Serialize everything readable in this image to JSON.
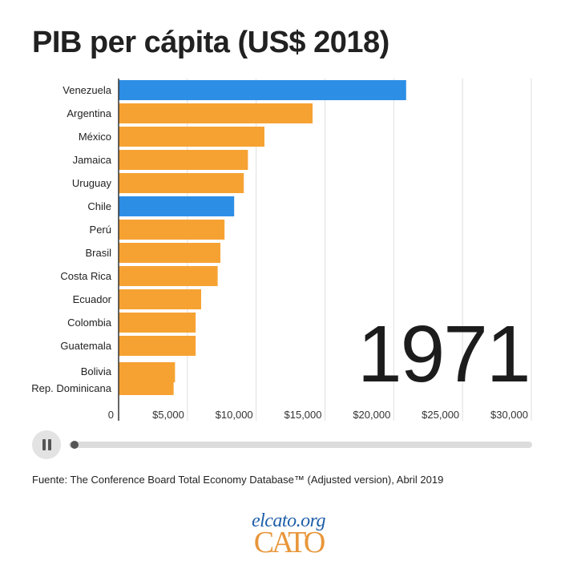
{
  "chart_data": {
    "type": "bar",
    "orientation": "horizontal",
    "title": "PIB per cápita (US$ 2018)",
    "categories": [
      "Venezuela",
      "Argentina",
      "México",
      "Jamaica",
      "Uruguay",
      "Chile",
      "Perú",
      "Brasil",
      "Costa Rica",
      "Ecuador",
      "Colombia",
      "Guatemala",
      "Bolivia",
      "Rep. Dominicana"
    ],
    "values": [
      20900,
      14100,
      10600,
      9400,
      9100,
      8400,
      7700,
      7400,
      7200,
      6000,
      5600,
      5600,
      4100,
      4000
    ],
    "colors": [
      "#2d8ee5",
      "#f6a233",
      "#f6a233",
      "#f6a233",
      "#f6a233",
      "#2d8ee5",
      "#f6a233",
      "#f6a233",
      "#f6a233",
      "#f6a233",
      "#f6a233",
      "#f6a233",
      "#f6a233",
      "#f6a233"
    ],
    "xlim": [
      0,
      30000
    ],
    "x_ticks": [
      0,
      5000,
      10000,
      15000,
      20000,
      25000,
      30000
    ],
    "x_tick_labels": [
      "0",
      "$5,000",
      "$10,000",
      "$15,000",
      "$20,000",
      "$25,000",
      "$30,000"
    ],
    "grid": "vertical",
    "year": "1971"
  },
  "highlight_color": "#2d8ee5",
  "bar_color": "#f6a233",
  "controls": {
    "playback_progress": 0.0,
    "icons": [
      "pause-icon"
    ]
  },
  "source": "Fuente: The Conference Board Total Economy Database™ (Adjusted version), Abril 2019",
  "logo": {
    "url_text": "elcato.org",
    "wordmark": "CATO"
  }
}
